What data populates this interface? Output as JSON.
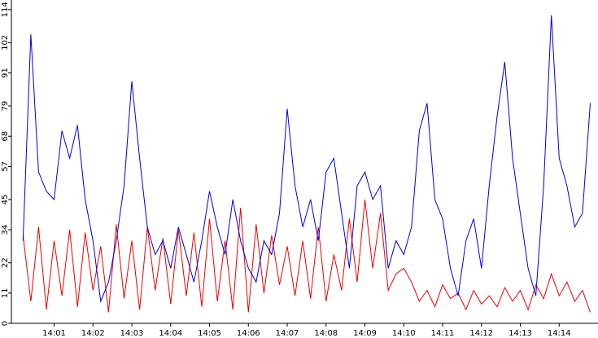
{
  "chart_data": {
    "type": "line",
    "x": [
      0.2,
      0.4,
      0.6,
      0.8,
      1.0,
      1.2,
      1.4,
      1.6,
      1.8,
      2.0,
      2.2,
      2.4,
      2.6,
      2.8,
      3.0,
      3.2,
      3.4,
      3.6,
      3.8,
      4.0,
      4.2,
      4.4,
      4.6,
      4.8,
      5.0,
      5.2,
      5.4,
      5.6,
      5.8,
      6.0,
      6.2,
      6.4,
      6.6,
      6.8,
      7.0,
      7.2,
      7.4,
      7.6,
      7.8,
      8.0,
      8.2,
      8.4,
      8.6,
      8.8,
      9.0,
      9.2,
      9.4,
      9.6,
      9.8,
      10.0,
      10.2,
      10.4,
      10.6,
      10.8,
      11.0,
      11.2,
      11.4,
      11.6,
      11.8,
      12.0,
      12.2,
      12.4,
      12.6,
      12.8,
      13.0,
      13.2,
      13.4,
      13.6,
      13.8,
      14.0,
      14.2,
      14.4,
      14.6,
      14.8
    ],
    "series": [
      {
        "color": "#0000dd",
        "values": [
          30,
          105,
          55,
          48,
          45,
          70,
          60,
          72,
          45,
          30,
          8,
          15,
          30,
          50,
          88,
          60,
          35,
          25,
          30,
          20,
          35,
          25,
          15,
          30,
          48,
          35,
          25,
          45,
          30,
          20,
          15,
          30,
          25,
          40,
          78,
          50,
          35,
          45,
          30,
          55,
          60,
          40,
          20,
          50,
          55,
          45,
          50,
          20,
          30,
          25,
          35,
          70,
          80,
          45,
          38,
          20,
          10,
          30,
          38,
          20,
          50,
          75,
          95,
          60,
          40,
          20,
          10,
          50,
          112,
          60,
          50,
          35,
          40,
          80
        ]
      },
      {
        "color": "#ee0000",
        "values": [
          32,
          8,
          35,
          5,
          30,
          10,
          34,
          6,
          33,
          12,
          28,
          4,
          36,
          9,
          30,
          5,
          35,
          12,
          31,
          7,
          34,
          10,
          33,
          6,
          38,
          8,
          30,
          5,
          42,
          4,
          36,
          11,
          32,
          14,
          28,
          10,
          30,
          9,
          35,
          8,
          25,
          12,
          38,
          15,
          45,
          20,
          40,
          12,
          18,
          20,
          15,
          8,
          12,
          6,
          14,
          9,
          11,
          5,
          12,
          7,
          10,
          6,
          13,
          8,
          12,
          5,
          14,
          9,
          18,
          10,
          15,
          8,
          12,
          4
        ]
      }
    ],
    "xlim": [
      -0.1,
      15
    ],
    "xticks": [
      {
        "value": 1,
        "label": "14:01"
      },
      {
        "value": 2,
        "label": "14:02"
      },
      {
        "value": 3,
        "label": "14:03"
      },
      {
        "value": 4,
        "label": "14:04"
      },
      {
        "value": 5,
        "label": "14:05"
      },
      {
        "value": 6,
        "label": "14:06"
      },
      {
        "value": 7,
        "label": "14:07"
      },
      {
        "value": 8,
        "label": "14:08"
      },
      {
        "value": 9,
        "label": "14:09"
      },
      {
        "value": 10,
        "label": "14:10"
      },
      {
        "value": 11,
        "label": "14:11"
      },
      {
        "value": 12,
        "label": "14:12"
      },
      {
        "value": 13,
        "label": "14:13"
      },
      {
        "value": 14,
        "label": "14:14"
      }
    ],
    "ylim": [
      0,
      117.5
    ],
    "yticks": [
      0,
      11,
      22,
      34,
      45,
      57,
      68,
      79,
      91,
      102,
      114
    ]
  }
}
